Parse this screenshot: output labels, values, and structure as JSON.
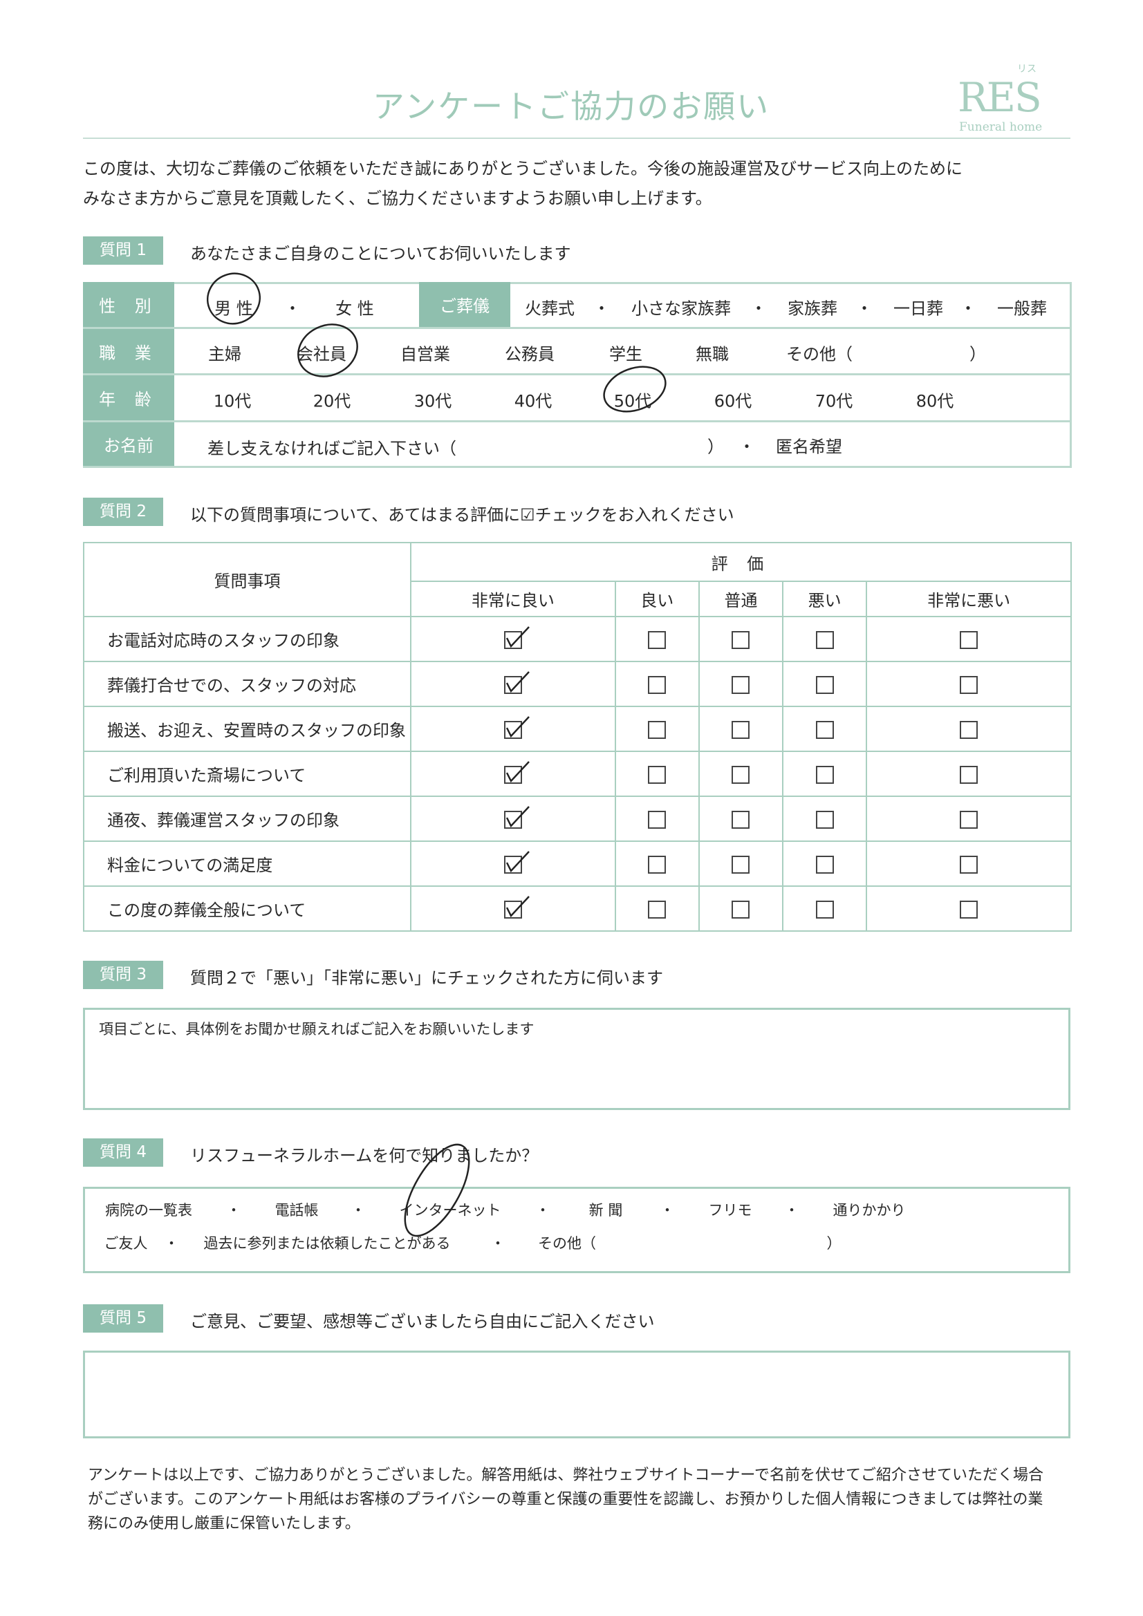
{
  "title": "アンケートご協力のお願い",
  "logo": {
    "main": "RES",
    "kana": "リス",
    "sub": "Funeral home"
  },
  "intro": [
    "この度は、大切なご葬儀のご依頼をいただき誠にありがとうございました。今後の施設運営及びサービス向上のために",
    "みなさま方からご意見を頂戴したく、ご協力くださいますようお願い申し上げます。"
  ],
  "q1": {
    "label": "質問 1",
    "text": "あなたさまご自身のことについてお伺いいたします",
    "gender": {
      "label": "性 別",
      "options": [
        "男 性",
        "女 性"
      ],
      "selected": "男 性"
    },
    "funeral": {
      "label": "ご葬儀",
      "options": [
        "火葬式",
        "小さな家族葬",
        "家族葬",
        "一日葬",
        "一般葬"
      ],
      "selected": null
    },
    "job": {
      "label": "職 業",
      "options": [
        "主婦",
        "会社員",
        "自営業",
        "公務員",
        "学生",
        "無職"
      ],
      "other": "その他（",
      "other_close": "）",
      "selected": "会社員"
    },
    "age": {
      "label": "年 齢",
      "options": [
        "10代",
        "20代",
        "30代",
        "40代",
        "50代",
        "60代",
        "70代",
        "80代"
      ],
      "selected": "50代"
    },
    "name": {
      "label": "お名前",
      "prompt": "差し支えなければご記入下さい（",
      "close": "）",
      "anon": "匿名希望"
    },
    "sep": "・"
  },
  "q2": {
    "label": "質問 2",
    "text": "以下の質問事項について、あてはまる評価に☑チェックをお入れください",
    "header_item": "質問事項",
    "header_rating": "評 価",
    "ratings": [
      "非常に良い",
      "良い",
      "普通",
      "悪い",
      "非常に悪い"
    ],
    "items": [
      {
        "q": "お電話対応時のスタッフの印象",
        "checked": "非常に良い"
      },
      {
        "q": "葬儀打合せでの、スタッフの対応",
        "checked": "非常に良い"
      },
      {
        "q": "搬送、お迎え、安置時のスタッフの印象",
        "checked": "非常に良い"
      },
      {
        "q": "ご利用頂いた斎場について",
        "checked": "非常に良い"
      },
      {
        "q": "通夜、葬儀運営スタッフの印象",
        "checked": "非常に良い"
      },
      {
        "q": "料金についての満足度",
        "checked": "非常に良い"
      },
      {
        "q": "この度の葬儀全般について",
        "checked": "非常に良い"
      }
    ]
  },
  "q3": {
    "label": "質問 3",
    "text": "質問２で「悪い」「非常に悪い」にチェックされた方に伺います",
    "box_text": "項目ごとに、具体例をお聞かせ願えればご記入をお願いいたします"
  },
  "q4": {
    "label": "質問 4",
    "text": "リスフューネラルホームを何で知りましたか？",
    "row1": [
      "病院の一覧表",
      "電話帳",
      "インターネット",
      "新 聞",
      "フリモ",
      "通りかかり"
    ],
    "row2": [
      "ご友人",
      "過去に参列または依頼したことがある"
    ],
    "other": "その他（",
    "other_close": "）",
    "selected": "インターネット"
  },
  "q5": {
    "label": "質問 5",
    "text": "ご意見、ご要望、感想等ございましたら自由にご記入ください"
  },
  "footer": [
    "アンケートは以上です、ご協力ありがとうございました。解答用紙は、弊社ウェブサイトコーナーで名前を伏せてご紹介させていただく場合",
    "がございます。このアンケート用紙はお客様のプライバシーの尊重と保護の重要性を認識し、お預かりした個人情報につきましては弊社の業",
    "務にのみ使用し厳重に保管いたします。"
  ],
  "colors": {
    "accent": "#8fbfae",
    "border": "#a9cfc0",
    "title": "#9fcab8",
    "ink": "#222222"
  }
}
